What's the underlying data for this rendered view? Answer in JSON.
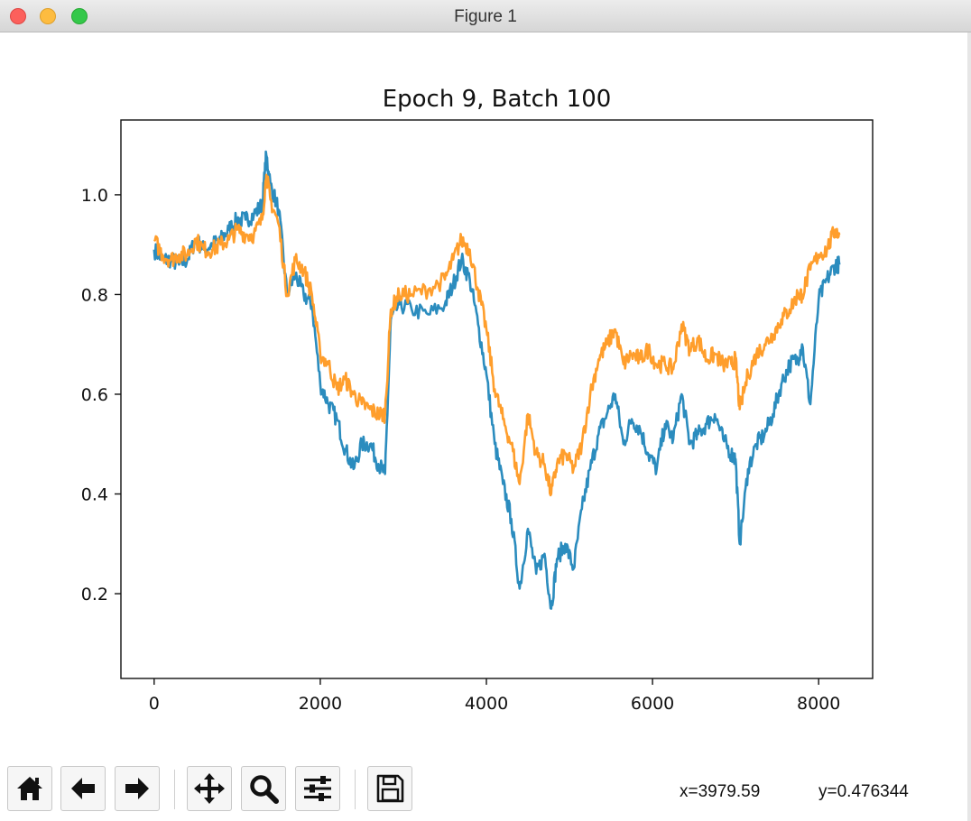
{
  "window": {
    "title": "Figure 1"
  },
  "toolbar": {
    "buttons": [
      {
        "name": "home",
        "icon": "home-icon"
      },
      {
        "name": "back",
        "icon": "arrow-left-icon"
      },
      {
        "name": "forward",
        "icon": "arrow-right-icon"
      },
      {
        "name": "pan",
        "icon": "move-icon"
      },
      {
        "name": "zoom",
        "icon": "magnifier-icon"
      },
      {
        "name": "configure",
        "icon": "sliders-icon"
      },
      {
        "name": "save",
        "icon": "floppy-disk-icon"
      }
    ],
    "x_readout": "x=3979.59",
    "y_readout": "y=0.476344"
  },
  "chart_data": {
    "type": "line",
    "title": "Epoch 9, Batch 100",
    "xlabel": "",
    "ylabel": "",
    "xlim": [
      -400,
      8650
    ],
    "ylim": [
      0.03,
      1.15
    ],
    "xticks": [
      0,
      2000,
      4000,
      6000,
      8000
    ],
    "yticks": [
      0.2,
      0.4,
      0.6,
      0.8,
      1.0
    ],
    "ytick_labels": [
      "0.2",
      "0.4",
      "0.6",
      "0.8",
      "1.0"
    ],
    "grid": false,
    "series": [
      {
        "color": "#2b8cbe",
        "x": [
          0,
          100,
          200,
          300,
          400,
          500,
          600,
          700,
          800,
          900,
          1000,
          1100,
          1200,
          1300,
          1350,
          1400,
          1500,
          1600,
          1700,
          1800,
          1900,
          2000,
          2100,
          2200,
          2300,
          2400,
          2500,
          2600,
          2700,
          2780,
          2850,
          2950,
          3100,
          3300,
          3500,
          3600,
          3700,
          3800,
          3900,
          4000,
          4100,
          4200,
          4300,
          4400,
          4500,
          4600,
          4700,
          4780,
          4850,
          4950,
          5050,
          5150,
          5250,
          5350,
          5450,
          5550,
          5650,
          5750,
          5850,
          5950,
          6050,
          6150,
          6250,
          6350,
          6450,
          6550,
          6650,
          6750,
          6850,
          6950,
          7000,
          7050,
          7150,
          7250,
          7350,
          7450,
          7550,
          7650,
          7750,
          7800,
          7900,
          8000,
          8100,
          8200,
          8250
        ],
        "y": [
          0.89,
          0.87,
          0.87,
          0.86,
          0.87,
          0.91,
          0.89,
          0.9,
          0.91,
          0.93,
          0.95,
          0.95,
          0.96,
          0.98,
          1.08,
          1.02,
          0.97,
          0.8,
          0.84,
          0.8,
          0.78,
          0.62,
          0.58,
          0.55,
          0.49,
          0.45,
          0.5,
          0.5,
          0.46,
          0.44,
          0.75,
          0.78,
          0.77,
          0.76,
          0.78,
          0.82,
          0.87,
          0.83,
          0.74,
          0.64,
          0.5,
          0.42,
          0.35,
          0.21,
          0.33,
          0.24,
          0.28,
          0.17,
          0.27,
          0.3,
          0.25,
          0.37,
          0.45,
          0.52,
          0.56,
          0.6,
          0.5,
          0.55,
          0.53,
          0.48,
          0.45,
          0.54,
          0.51,
          0.6,
          0.5,
          0.52,
          0.54,
          0.56,
          0.51,
          0.48,
          0.47,
          0.3,
          0.45,
          0.5,
          0.52,
          0.56,
          0.62,
          0.66,
          0.67,
          0.7,
          0.58,
          0.79,
          0.83,
          0.86,
          0.86
        ]
      },
      {
        "color": "#ff9e2c",
        "x": [
          0,
          100,
          200,
          300,
          400,
          500,
          600,
          700,
          800,
          900,
          1000,
          1100,
          1200,
          1300,
          1350,
          1400,
          1500,
          1600,
          1700,
          1800,
          1900,
          2000,
          2100,
          2200,
          2300,
          2400,
          2500,
          2600,
          2700,
          2780,
          2850,
          2950,
          3100,
          3300,
          3500,
          3600,
          3700,
          3800,
          3900,
          4000,
          4100,
          4200,
          4300,
          4400,
          4500,
          4600,
          4700,
          4780,
          4850,
          4950,
          5050,
          5150,
          5250,
          5350,
          5450,
          5550,
          5650,
          5750,
          5850,
          5950,
          6050,
          6150,
          6250,
          6350,
          6450,
          6550,
          6650,
          6750,
          6850,
          6950,
          7000,
          7050,
          7150,
          7250,
          7350,
          7450,
          7550,
          7650,
          7750,
          7800,
          7900,
          8000,
          8100,
          8200,
          8250
        ],
        "y": [
          0.91,
          0.88,
          0.87,
          0.88,
          0.88,
          0.91,
          0.89,
          0.89,
          0.9,
          0.91,
          0.93,
          0.92,
          0.92,
          0.95,
          1.04,
          0.99,
          0.94,
          0.8,
          0.87,
          0.85,
          0.8,
          0.68,
          0.66,
          0.61,
          0.63,
          0.6,
          0.58,
          0.57,
          0.56,
          0.56,
          0.77,
          0.8,
          0.8,
          0.81,
          0.83,
          0.87,
          0.91,
          0.89,
          0.81,
          0.73,
          0.61,
          0.55,
          0.5,
          0.42,
          0.56,
          0.48,
          0.46,
          0.4,
          0.46,
          0.48,
          0.45,
          0.5,
          0.6,
          0.67,
          0.7,
          0.73,
          0.66,
          0.68,
          0.67,
          0.69,
          0.66,
          0.66,
          0.65,
          0.74,
          0.69,
          0.71,
          0.67,
          0.68,
          0.66,
          0.66,
          0.67,
          0.57,
          0.64,
          0.68,
          0.7,
          0.72,
          0.75,
          0.77,
          0.8,
          0.8,
          0.85,
          0.88,
          0.89,
          0.93,
          0.92
        ]
      }
    ]
  }
}
